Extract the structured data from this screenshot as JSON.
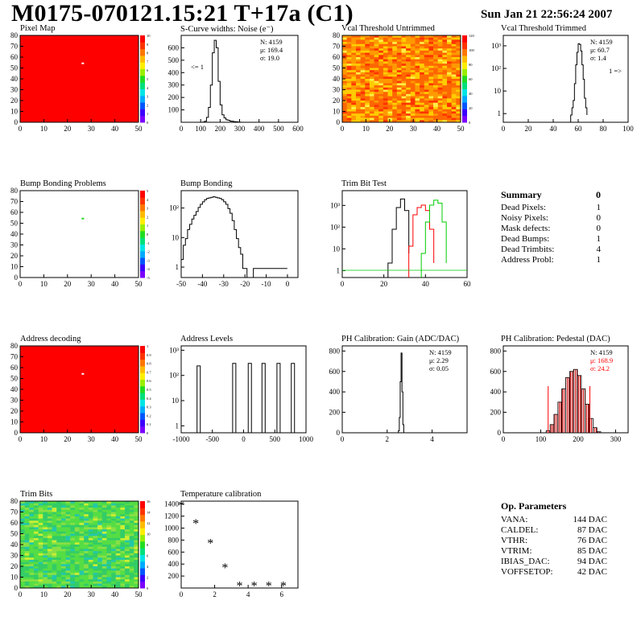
{
  "header": {
    "title": "M0175-070121.15:21 T+17a (C1)",
    "date": "Sun Jan 21 22:56:24 2007"
  },
  "summary": {
    "title": "Summary",
    "total": "0",
    "rows": [
      {
        "label": "Dead Pixels:",
        "value": "1"
      },
      {
        "label": "Noisy Pixels:",
        "value": "0"
      },
      {
        "label": "Mask defects:",
        "value": "0"
      },
      {
        "label": "Dead Bumps:",
        "value": "1"
      },
      {
        "label": "Dead Trimbits:",
        "value": "4"
      },
      {
        "label": "Address Probl:",
        "value": "1"
      }
    ]
  },
  "op_params": {
    "title": "Op. Parameters",
    "rows": [
      {
        "label": "VANA:",
        "value": "144 DAC"
      },
      {
        "label": "CALDEL:",
        "value": "87 DAC"
      },
      {
        "label": "VTHR:",
        "value": "76 DAC"
      },
      {
        "label": "VTRIM:",
        "value": "85 DAC"
      },
      {
        "label": "IBIAS_DAC:",
        "value": "94 DAC"
      },
      {
        "label": "VOFFSETOP:",
        "value": "42 DAC"
      }
    ]
  },
  "colors": {
    "red": "#ff0000",
    "green": "#00cc00",
    "black": "#000000",
    "pedestal_fill": "#cc0000"
  },
  "chart_data": [
    {
      "id": "pixel_map",
      "type": "heatmap",
      "title": "Pixel Map",
      "xlim": [
        0,
        52
      ],
      "ylim": [
        0,
        80
      ],
      "xticks": [
        "0",
        "10",
        "20",
        "30",
        "40",
        "50"
      ],
      "yticks": [
        "0",
        "10",
        "20",
        "30",
        "40",
        "50",
        "60",
        "70",
        "80"
      ],
      "zticks": [
        "0",
        "1",
        "2",
        "3",
        "4",
        "5",
        "6",
        "7",
        "8",
        "9",
        "10"
      ],
      "fill": "uniform red (max)",
      "hot_pixel": {
        "x": 27,
        "y": 55
      }
    },
    {
      "id": "scurve",
      "type": "line",
      "title": "S-Curve widths: Noise (e⁻)",
      "xlim": [
        0,
        600
      ],
      "ylim": [
        0,
        700
      ],
      "xticks": [
        "0",
        "100",
        "200",
        "300",
        "400",
        "500",
        "600"
      ],
      "yticks": [
        "100",
        "200",
        "300",
        "400",
        "500",
        "600"
      ],
      "stats": [
        "N: 4159",
        "μ: 169.4",
        "σ: 19.0"
      ],
      "overflow_label": "<= 1",
      "x": [
        100,
        110,
        120,
        130,
        140,
        150,
        160,
        170,
        180,
        190,
        200,
        210,
        220,
        230,
        240,
        250,
        260,
        270,
        280,
        290,
        300,
        310
      ],
      "y": [
        0,
        2,
        8,
        40,
        120,
        300,
        560,
        660,
        600,
        330,
        140,
        60,
        35,
        20,
        15,
        10,
        8,
        5,
        4,
        2,
        1,
        0
      ]
    },
    {
      "id": "vcal_untrimmed",
      "type": "heatmap",
      "title": "Vcal Threshold Untrimmed",
      "xlim": [
        0,
        52
      ],
      "ylim": [
        0,
        80
      ],
      "xticks": [
        "0",
        "10",
        "20",
        "30",
        "40",
        "50"
      ],
      "yticks": [
        "0",
        "10",
        "20",
        "30",
        "40",
        "50",
        "60",
        "70",
        "80"
      ],
      "zticks": [
        "0",
        "20",
        "40",
        "60",
        "80",
        "100",
        "120"
      ],
      "dominant_range": [
        60,
        110
      ]
    },
    {
      "id": "vcal_trimmed",
      "type": "line",
      "title": "Vcal Threshold Trimmed",
      "xlim": [
        0,
        100
      ],
      "log_y": true,
      "xticks": [
        "0",
        "20",
        "40",
        "60",
        "80",
        "100"
      ],
      "yticks": [
        "1",
        "10",
        "10²",
        "10³"
      ],
      "stats": [
        "N: 4159",
        "μ: 60.7",
        "σ: 1.4"
      ],
      "overflow_label": "1 =>",
      "x": [
        54,
        55,
        56,
        57,
        58,
        59,
        60,
        61,
        62,
        63,
        64,
        65,
        66,
        67
      ],
      "y": [
        1,
        2,
        4,
        20,
        120,
        400,
        900,
        850,
        450,
        120,
        30,
        5,
        2,
        1
      ]
    },
    {
      "id": "bump_map",
      "type": "heatmap",
      "title": "Bump Bonding Problems",
      "xlim": [
        0,
        52
      ],
      "ylim": [
        0,
        80
      ],
      "xticks": [
        "0",
        "10",
        "20",
        "30",
        "40",
        "50"
      ],
      "yticks": [
        "0",
        "10",
        "20",
        "30",
        "40",
        "50",
        "60",
        "70",
        "80"
      ],
      "zticks": [
        "-5",
        "-4",
        "-3",
        "-2",
        "-1",
        "0",
        "1",
        "2",
        "3",
        "4",
        "5"
      ],
      "hot_pixel": {
        "x": 27,
        "y": 55
      }
    },
    {
      "id": "bump_bonding",
      "type": "line",
      "title": "Bump Bonding",
      "xlim": [
        -50,
        5
      ],
      "log_y": true,
      "xticks": [
        "-50",
        "-40",
        "-30",
        "-20",
        "-10",
        "0"
      ],
      "yticks": [
        "1",
        "10",
        "10²"
      ],
      "x": [
        -50,
        -49,
        -48,
        -47,
        -46,
        -45,
        -44,
        -43,
        -42,
        -41,
        -40,
        -39,
        -38,
        -37,
        -36,
        -35,
        -34,
        -33,
        -32,
        -31,
        -30,
        -29,
        -28,
        -27,
        -26,
        -25,
        -24,
        -23,
        -22,
        -21,
        -20,
        -19,
        -18,
        -17,
        -16,
        0
      ],
      "y": [
        2,
        6,
        10,
        20,
        30,
        45,
        60,
        80,
        110,
        140,
        170,
        200,
        220,
        230,
        240,
        250,
        240,
        230,
        220,
        200,
        170,
        140,
        100,
        70,
        40,
        20,
        10,
        5,
        3,
        1,
        1,
        0,
        0,
        0,
        1,
        1
      ]
    },
    {
      "id": "trim_bit_test",
      "type": "line",
      "title": "Trim Bit Test",
      "xlim": [
        0,
        60
      ],
      "log_y": true,
      "xticks": [
        "0",
        "20",
        "40",
        "60"
      ],
      "yticks": [
        "1",
        "10",
        "10²",
        "10³"
      ],
      "series": [
        {
          "color": "#000000",
          "x": [
            22,
            24,
            26,
            28,
            30,
            32
          ],
          "y": [
            2,
            50,
            400,
            900,
            300,
            5
          ]
        },
        {
          "color": "#ff0000",
          "x": [
            32,
            34,
            36,
            38,
            40,
            42,
            44
          ],
          "y": [
            10,
            200,
            400,
            500,
            300,
            50,
            2
          ]
        },
        {
          "color": "#00cc00",
          "x": [
            38,
            40,
            42,
            44,
            46,
            48,
            50
          ],
          "y": [
            5,
            100,
            500,
            800,
            600,
            100,
            2
          ]
        }
      ]
    },
    {
      "id": "address_decoding",
      "type": "heatmap",
      "title": "Address decoding",
      "xlim": [
        0,
        52
      ],
      "ylim": [
        0,
        80
      ],
      "xticks": [
        "0",
        "10",
        "20",
        "30",
        "40",
        "50"
      ],
      "yticks": [
        "0",
        "10",
        "20",
        "30",
        "40",
        "50",
        "60",
        "70",
        "80"
      ],
      "zticks": [
        "0",
        "0.1",
        "0.2",
        "0.3",
        "0.4",
        "0.5",
        "0.6",
        "0.7",
        "0.8",
        "0.9",
        "1"
      ],
      "fill": "uniform red (max)",
      "hot_pixel": {
        "x": 27,
        "y": 55
      }
    },
    {
      "id": "address_levels",
      "type": "line",
      "title": "Address Levels",
      "xlim": [
        -1000,
        1000
      ],
      "log_y": true,
      "xticks": [
        "-1000",
        "-500",
        "0",
        "500",
        "1000"
      ],
      "yticks": [
        "1",
        "10",
        "10²",
        "10³"
      ],
      "peaks": [
        -720,
        -150,
        100,
        320,
        560,
        790
      ],
      "peak_heights": [
        200,
        250,
        250,
        250,
        250,
        250
      ]
    },
    {
      "id": "ph_gain",
      "type": "line",
      "title": "PH Calibration: Gain (ADC/DAC)",
      "xlim": [
        -1,
        6
      ],
      "ylim": [
        0,
        850
      ],
      "xticks": [
        "0",
        "2",
        "4"
      ],
      "yticks": [
        "0",
        "200",
        "400",
        "600",
        "800"
      ],
      "stats": [
        "N: 4159",
        "μ: 2.29",
        "σ: 0.05"
      ],
      "x": [
        2.1,
        2.15,
        2.2,
        2.25,
        2.3,
        2.35,
        2.4,
        2.45
      ],
      "y": [
        0,
        20,
        150,
        500,
        780,
        400,
        80,
        0
      ]
    },
    {
      "id": "ph_pedestal",
      "type": "bar",
      "title": "PH Calibration: Pedestal (DAC)",
      "xlim": [
        0,
        320
      ],
      "ylim": [
        0,
        850
      ],
      "xticks": [
        "0",
        "100",
        "200",
        "300"
      ],
      "yticks": [
        "0",
        "200",
        "400",
        "600",
        "800"
      ],
      "stats": [
        "N: 4159",
        "μ: 168.9",
        "σ: 24.2"
      ],
      "x": [
        100,
        110,
        120,
        130,
        140,
        150,
        160,
        170,
        180,
        190,
        200,
        210,
        220,
        230,
        240,
        250
      ],
      "y": [
        0,
        20,
        80,
        180,
        300,
        430,
        540,
        600,
        620,
        560,
        430,
        280,
        140,
        50,
        10,
        0
      ],
      "fit_range": [
        115,
        222
      ]
    },
    {
      "id": "trim_bits",
      "type": "heatmap",
      "title": "Trim Bits",
      "xlim": [
        0,
        52
      ],
      "ylim": [
        0,
        80
      ],
      "xticks": [
        "0",
        "10",
        "20",
        "30",
        "40",
        "50"
      ],
      "yticks": [
        "0",
        "10",
        "20",
        "30",
        "40",
        "50",
        "60",
        "70",
        "80"
      ],
      "zticks": [
        "0",
        "2",
        "4",
        "6",
        "8",
        "10",
        "12",
        "14",
        "16"
      ],
      "dominant_range": [
        6,
        11
      ]
    },
    {
      "id": "temperature",
      "type": "scatter",
      "title": "Temperature calibration",
      "xlim": [
        0,
        8
      ],
      "ylim": [
        0,
        1450
      ],
      "xticks": [
        "0",
        "2",
        "4",
        "6"
      ],
      "yticks": [
        "200",
        "400",
        "600",
        "800",
        "1000",
        "1200",
        "1400"
      ],
      "x": [
        0,
        1,
        2,
        3,
        4,
        5,
        6,
        7
      ],
      "y": [
        1390,
        1090,
        760,
        350,
        50,
        50,
        50,
        50
      ]
    }
  ]
}
